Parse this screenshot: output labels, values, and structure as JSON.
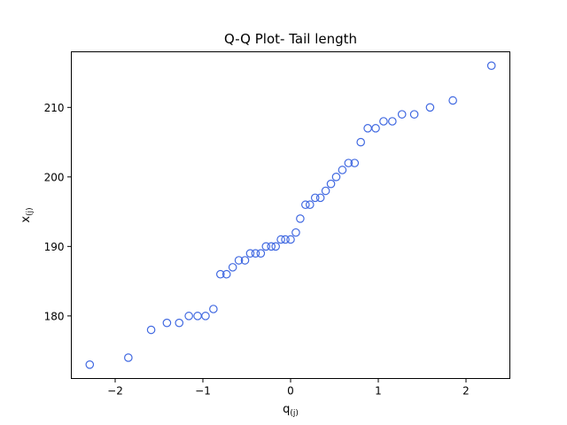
{
  "chart_data": {
    "type": "scatter",
    "title": "Q-Q Plot- Tail length",
    "xlabel": {
      "base": "q",
      "sub": "(j)"
    },
    "ylabel": {
      "base": "x",
      "sub": "(j)"
    },
    "xlim": [
      -2.5,
      2.5
    ],
    "ylim": [
      171.0,
      218.0
    ],
    "xticks": [
      -2,
      -1,
      0,
      1,
      2
    ],
    "xtick_labels": [
      "−2",
      "−1",
      "0",
      "1",
      "2"
    ],
    "yticks": [
      180,
      190,
      200,
      210
    ],
    "ytick_labels": [
      "180",
      "190",
      "200",
      "210"
    ],
    "grid": false,
    "marker_color": "#4169e1",
    "points": [
      {
        "x": -2.29,
        "y": 173
      },
      {
        "x": -1.85,
        "y": 174
      },
      {
        "x": -1.59,
        "y": 178
      },
      {
        "x": -1.41,
        "y": 179
      },
      {
        "x": -1.27,
        "y": 179
      },
      {
        "x": -1.16,
        "y": 180
      },
      {
        "x": -1.06,
        "y": 180
      },
      {
        "x": -0.97,
        "y": 180
      },
      {
        "x": -0.88,
        "y": 181
      },
      {
        "x": -0.8,
        "y": 186
      },
      {
        "x": -0.73,
        "y": 186
      },
      {
        "x": -0.66,
        "y": 187
      },
      {
        "x": -0.59,
        "y": 188
      },
      {
        "x": -0.52,
        "y": 188
      },
      {
        "x": -0.46,
        "y": 189
      },
      {
        "x": -0.4,
        "y": 189
      },
      {
        "x": -0.34,
        "y": 189
      },
      {
        "x": -0.28,
        "y": 190
      },
      {
        "x": -0.22,
        "y": 190
      },
      {
        "x": -0.17,
        "y": 190
      },
      {
        "x": -0.11,
        "y": 191
      },
      {
        "x": -0.06,
        "y": 191
      },
      {
        "x": 0.0,
        "y": 191
      },
      {
        "x": 0.06,
        "y": 192
      },
      {
        "x": 0.11,
        "y": 194
      },
      {
        "x": 0.17,
        "y": 196
      },
      {
        "x": 0.22,
        "y": 196
      },
      {
        "x": 0.28,
        "y": 197
      },
      {
        "x": 0.34,
        "y": 197
      },
      {
        "x": 0.4,
        "y": 198
      },
      {
        "x": 0.46,
        "y": 199
      },
      {
        "x": 0.52,
        "y": 200
      },
      {
        "x": 0.59,
        "y": 201
      },
      {
        "x": 0.66,
        "y": 202
      },
      {
        "x": 0.73,
        "y": 202
      },
      {
        "x": 0.8,
        "y": 205
      },
      {
        "x": 0.88,
        "y": 207
      },
      {
        "x": 0.97,
        "y": 207
      },
      {
        "x": 1.06,
        "y": 208
      },
      {
        "x": 1.16,
        "y": 208
      },
      {
        "x": 1.27,
        "y": 209
      },
      {
        "x": 1.41,
        "y": 209
      },
      {
        "x": 1.59,
        "y": 210
      },
      {
        "x": 1.85,
        "y": 211
      },
      {
        "x": 2.29,
        "y": 216
      }
    ]
  }
}
